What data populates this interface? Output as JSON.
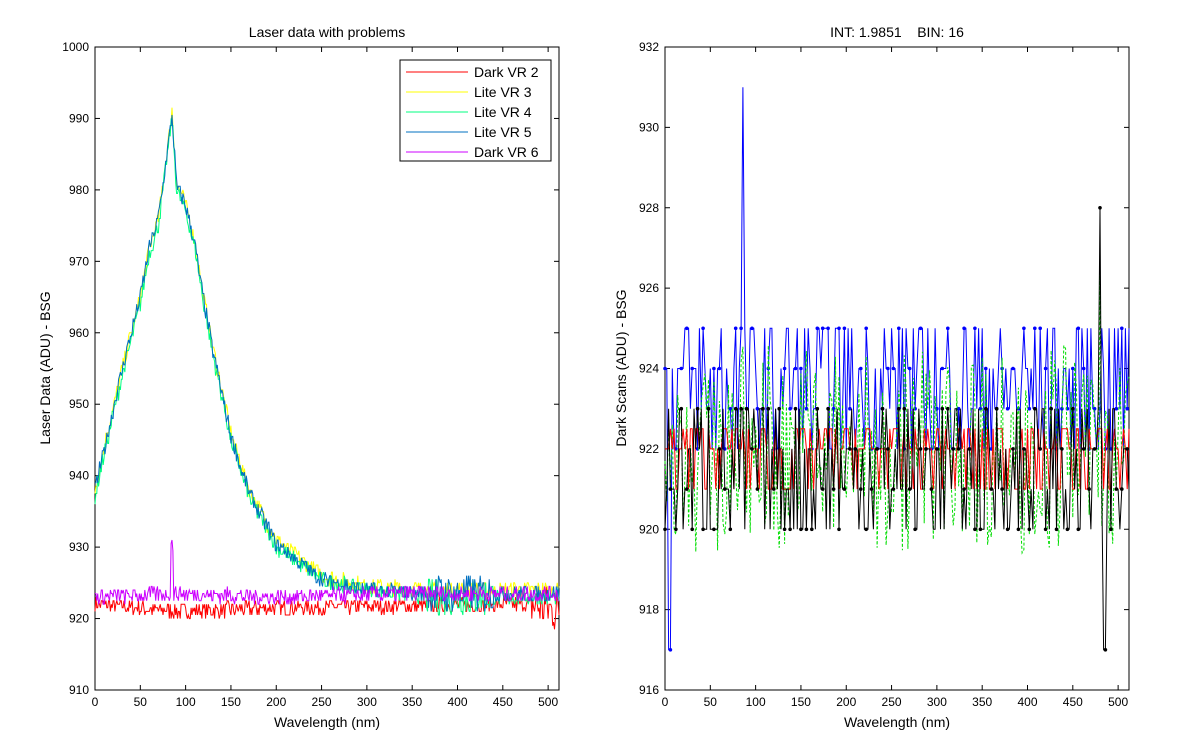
{
  "chart_data": [
    {
      "type": "line",
      "title": "Laser data with problems",
      "xlabel": "Wavelength (nm)",
      "ylabel": "Laser Data (ADU) - BSG",
      "xlim": [
        0,
        512
      ],
      "ylim": [
        910,
        1000
      ],
      "xticks": [
        0,
        50,
        100,
        150,
        200,
        250,
        300,
        350,
        400,
        450,
        500
      ],
      "yticks": [
        910,
        920,
        930,
        940,
        950,
        960,
        970,
        980,
        990,
        1000
      ],
      "grid": false,
      "legend_position": "top-right",
      "series": [
        {
          "name": "Dark VR 2",
          "color": "#ff0000",
          "base": 921.5,
          "x": [
            0,
            90,
            200,
            350,
            480,
            512
          ],
          "values": [
            922,
            921,
            921.5,
            921.8,
            922,
            921
          ]
        },
        {
          "name": "Lite VR 3",
          "color": "#ffff00",
          "x": [
            0,
            10,
            30,
            50,
            60,
            70,
            85,
            90,
            100,
            110,
            120,
            130,
            150,
            170,
            200,
            250,
            300,
            370,
            450,
            512
          ],
          "values": [
            938,
            944,
            955,
            965,
            972,
            976,
            991,
            981,
            978,
            973,
            965,
            958,
            946,
            938,
            931,
            926,
            924.5,
            924,
            924,
            924
          ]
        },
        {
          "name": "Lite VR 4",
          "color": "#00ff80",
          "x": [
            0,
            10,
            30,
            50,
            60,
            70,
            85,
            90,
            100,
            110,
            120,
            130,
            150,
            170,
            200,
            250,
            300,
            370,
            450,
            512
          ],
          "values": [
            937,
            943,
            954,
            964,
            971,
            975,
            990,
            980,
            977,
            972,
            964,
            957,
            945,
            937,
            930,
            925.5,
            924,
            923,
            923,
            923
          ]
        },
        {
          "name": "Lite VR 5",
          "color": "#0070c0",
          "x": [
            0,
            10,
            30,
            50,
            60,
            70,
            85,
            90,
            100,
            110,
            120,
            130,
            150,
            170,
            200,
            250,
            300,
            370,
            450,
            512
          ],
          "values": [
            938,
            943.5,
            955,
            965,
            972,
            976,
            990.5,
            980.5,
            978,
            972.5,
            964.5,
            957.5,
            945.5,
            937.5,
            930.5,
            925.5,
            924,
            923.5,
            923.5,
            923.5
          ]
        },
        {
          "name": "Dark VR 6",
          "color": "#cc00ff",
          "x": [
            0,
            90,
            200,
            350,
            480,
            512
          ],
          "values": [
            923,
            923.5,
            923,
            923.5,
            923.5,
            923.5
          ]
        }
      ]
    },
    {
      "type": "line",
      "title": "INT: 1.9851    BIN: 16",
      "xlabel": "Wavelength (nm)",
      "ylabel": "Dark Scans (ADU) - BSG",
      "xlim": [
        0,
        512
      ],
      "ylim": [
        916,
        932
      ],
      "xticks": [
        0,
        50,
        100,
        150,
        200,
        250,
        300,
        350,
        400,
        450,
        500
      ],
      "yticks": [
        916,
        918,
        920,
        922,
        924,
        926,
        928,
        930,
        932
      ],
      "grid": false,
      "series": [
        {
          "color": "#0000ff",
          "style": "line-dots",
          "levels": [
            922,
            923,
            924,
            925
          ],
          "spikes": [
            [
              86,
              931
            ],
            [
              5,
              917
            ]
          ]
        },
        {
          "color": "#00dd00",
          "style": "dashed",
          "levels": [
            920,
            921,
            922,
            923,
            924
          ],
          "spikes": [
            [
              480,
              926.5
            ]
          ]
        },
        {
          "color": "#ff0000",
          "style": "line",
          "levels": [
            921,
            922,
            922.5
          ]
        },
        {
          "color": "#000000",
          "style": "line-dots",
          "levels": [
            920,
            921,
            922,
            923
          ],
          "spikes": [
            [
              480,
              928
            ],
            [
              485,
              917
            ]
          ]
        }
      ]
    }
  ]
}
